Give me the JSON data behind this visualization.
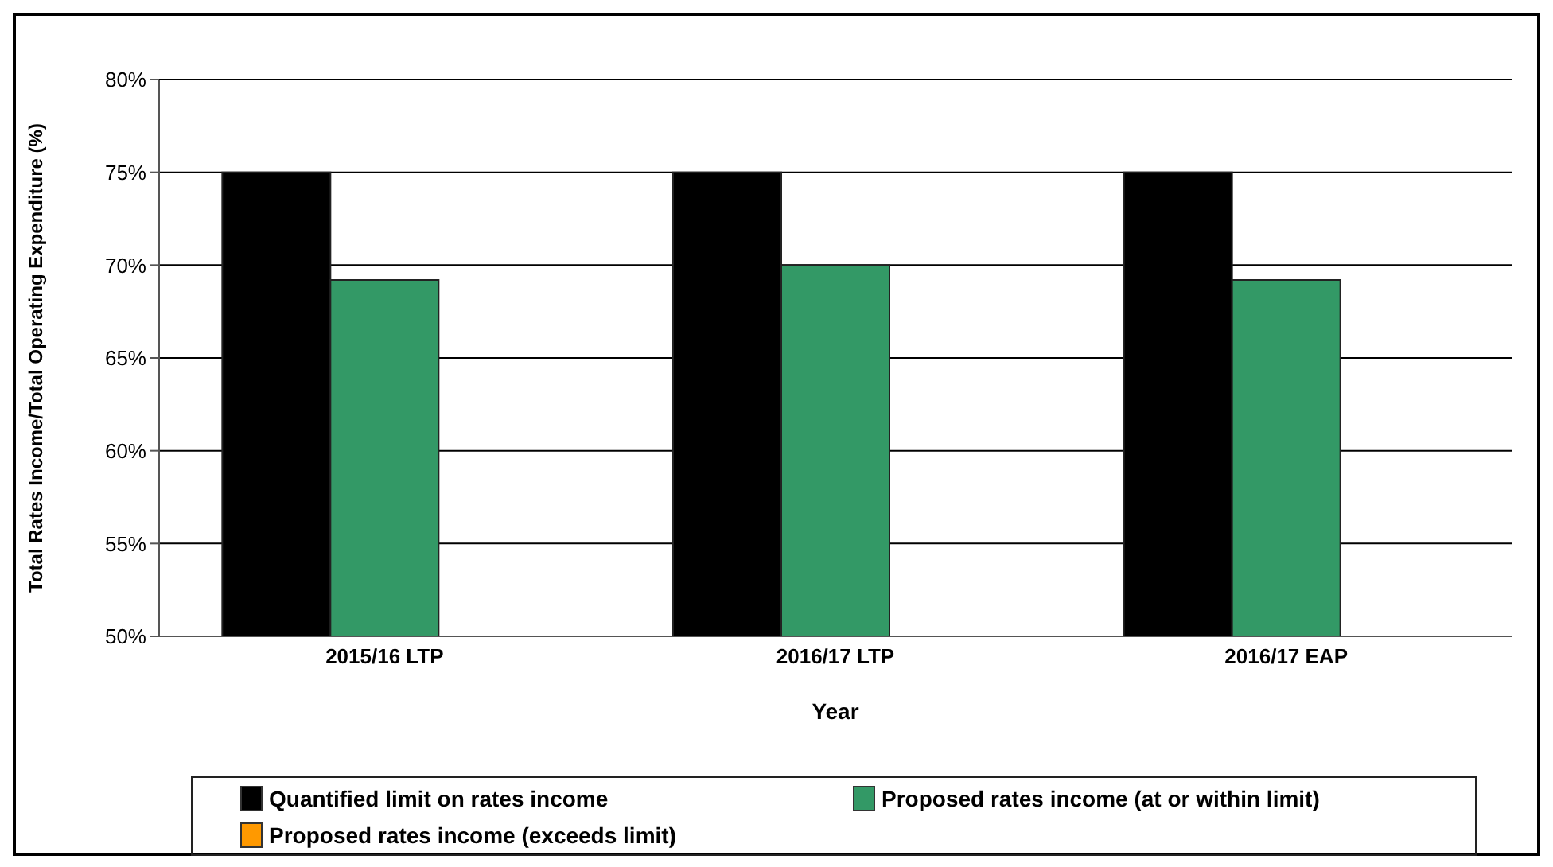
{
  "chart_data": {
    "type": "bar",
    "xlabel": "Year",
    "ylabel": "Total Rates Income/Total Operating Expenditure (%)",
    "categories": [
      "2015/16 LTP",
      "2016/17 LTP",
      "2016/17 EAP"
    ],
    "series": [
      {
        "name": "Quantified limit on rates income",
        "color": "#000000",
        "values": [
          75,
          75,
          75
        ]
      },
      {
        "name": "Proposed rates income (at or within limit)",
        "color": "#339966",
        "values": [
          69.2,
          70,
          69.2
        ]
      },
      {
        "name": "Proposed rates income (exceeds limit)",
        "color": "#ff9900",
        "values": [
          null,
          null,
          null
        ]
      }
    ],
    "ylim": [
      50,
      80
    ],
    "yticks": [
      {
        "value": 50,
        "label": "50%"
      },
      {
        "value": 55,
        "label": "55%"
      },
      {
        "value": 60,
        "label": "60%"
      },
      {
        "value": 65,
        "label": "65%"
      },
      {
        "value": 70,
        "label": "70%"
      },
      {
        "value": 75,
        "label": "75%"
      },
      {
        "value": 80,
        "label": "80%"
      }
    ],
    "grid": "y",
    "legend": "bottom"
  }
}
